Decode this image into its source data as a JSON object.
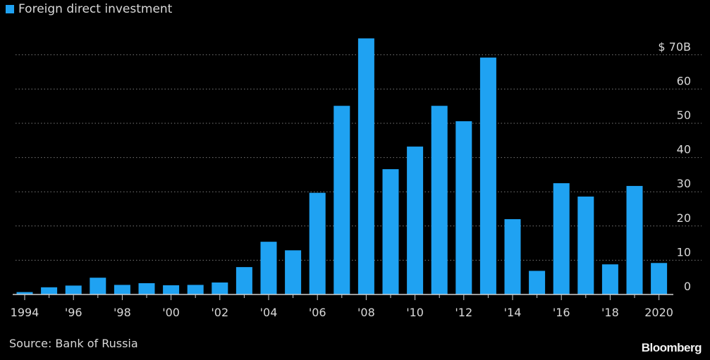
{
  "colors": {
    "background": "#000000",
    "bar": "#1fa2f2",
    "text": "#d9d9d9",
    "grid": "#7a7a7a",
    "axis": "#cfcfcf"
  },
  "legend": {
    "label": "Foreign direct investment",
    "swatch_color": "#1fa2f2"
  },
  "source": {
    "text": "Source: Bank of Russia"
  },
  "brand": {
    "text": "Bloomberg"
  },
  "chart_data": {
    "type": "bar",
    "title": "",
    "xlabel": "",
    "ylabel": "",
    "series": [
      {
        "name": "Foreign direct investment",
        "values": [
          0.7,
          2.1,
          2.6,
          4.9,
          2.8,
          3.3,
          2.7,
          2.8,
          3.5,
          8.0,
          15.4,
          12.9,
          29.7,
          55.1,
          74.8,
          36.6,
          43.2,
          55.1,
          50.6,
          69.2,
          22.0,
          6.9,
          32.5,
          28.6,
          8.8,
          31.7,
          9.2
        ]
      }
    ],
    "categories": [
      "1994",
      "1995",
      "1996",
      "1997",
      "1998",
      "1999",
      "2000",
      "2001",
      "2002",
      "2003",
      "2004",
      "2005",
      "2006",
      "2007",
      "2008",
      "2009",
      "2010",
      "2011",
      "2012",
      "2013",
      "2014",
      "2015",
      "2016",
      "2017",
      "2018",
      "2019",
      "2020"
    ],
    "x_tick_labels": [
      {
        "index": 0,
        "label": "1994"
      },
      {
        "index": 2,
        "label": "'96"
      },
      {
        "index": 4,
        "label": "'98"
      },
      {
        "index": 6,
        "label": "'00"
      },
      {
        "index": 8,
        "label": "'02"
      },
      {
        "index": 10,
        "label": "'04"
      },
      {
        "index": 12,
        "label": "'06"
      },
      {
        "index": 14,
        "label": "'08"
      },
      {
        "index": 16,
        "label": "'10"
      },
      {
        "index": 18,
        "label": "'12"
      },
      {
        "index": 20,
        "label": "'14"
      },
      {
        "index": 22,
        "label": "'16"
      },
      {
        "index": 24,
        "label": "'18"
      },
      {
        "index": 26,
        "label": "2020"
      }
    ],
    "y_ticks": [
      {
        "value": 0,
        "label": "0"
      },
      {
        "value": 10,
        "label": "10"
      },
      {
        "value": 20,
        "label": "20"
      },
      {
        "value": 30,
        "label": "30"
      },
      {
        "value": 40,
        "label": "40"
      },
      {
        "value": 50,
        "label": "50"
      },
      {
        "value": 60,
        "label": "60"
      },
      {
        "value": 70,
        "label": "$ 70B"
      }
    ],
    "ylim": [
      0,
      70
    ],
    "grid": true,
    "legend_position": "top-left",
    "y_axis_position": "right"
  }
}
